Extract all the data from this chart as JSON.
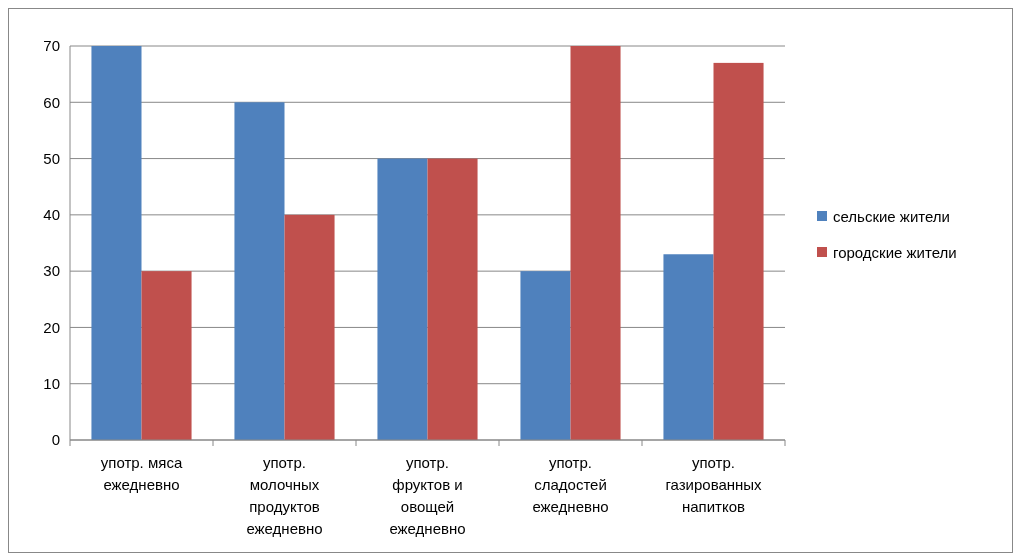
{
  "chart_data": {
    "type": "bar",
    "categories": [
      "употр. мяса ежедневно",
      "употр. молочных продуктов ежедневно",
      "употр. фруктов и овощей ежедневно",
      "употр. сладостей ежедневно",
      "употр. газированных напитков"
    ],
    "series": [
      {
        "name": "сельские жители",
        "color": "#4f81bd",
        "values": [
          70,
          60,
          50,
          30,
          33
        ]
      },
      {
        "name": "городские жители",
        "color": "#c0504d",
        "values": [
          30,
          40,
          50,
          70,
          67
        ]
      }
    ],
    "ylim": [
      0,
      70
    ],
    "yticks": [
      0,
      10,
      20,
      30,
      40,
      50,
      60,
      70
    ],
    "grid": "y",
    "legend": "right"
  }
}
